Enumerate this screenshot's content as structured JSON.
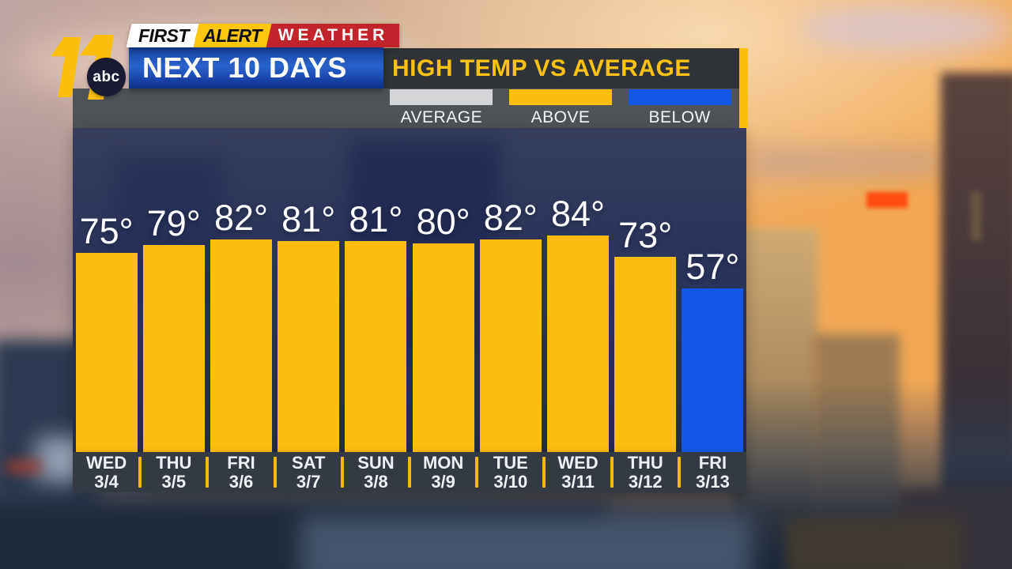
{
  "station": {
    "channel_number": "11",
    "network": "abc",
    "brand_first": "FIRST",
    "brand_alert": "ALERT",
    "brand_weather": "WEATHER"
  },
  "header": {
    "banner_title": "NEXT 10 DAYS",
    "chart_title": "HIGH TEMP VS AVERAGE"
  },
  "legend": {
    "items": [
      {
        "label": "AVERAGE",
        "color": "#d4d5d7"
      },
      {
        "label": "ABOVE",
        "color": "#fcbd10"
      },
      {
        "label": "BELOW",
        "color": "#1457e8"
      }
    ]
  },
  "chart_data": {
    "type": "bar",
    "title": "HIGH TEMP VS AVERAGE",
    "subtitle": "NEXT 10 DAYS",
    "unit": "°",
    "day_names": [
      "WED",
      "THU",
      "FRI",
      "SAT",
      "SUN",
      "MON",
      "TUE",
      "WED",
      "THU",
      "FRI"
    ],
    "dates": [
      "3/4",
      "3/5",
      "3/6",
      "3/7",
      "3/8",
      "3/9",
      "3/10",
      "3/11",
      "3/12",
      "3/13"
    ],
    "categories": [
      "WED 3/4",
      "THU 3/5",
      "FRI 3/6",
      "SAT 3/7",
      "SUN 3/8",
      "MON 3/9",
      "TUE 3/10",
      "WED 3/11",
      "THU 3/12",
      "FRI 3/13"
    ],
    "values": [
      75,
      79,
      82,
      81,
      81,
      80,
      82,
      84,
      73,
      57
    ],
    "status": [
      "above",
      "above",
      "above",
      "above",
      "above",
      "above",
      "above",
      "above",
      "above",
      "below"
    ],
    "colors": {
      "above": "#fcbd10",
      "below": "#1457e8",
      "average": "#d4d5d7"
    },
    "legend_entries": [
      "AVERAGE",
      "ABOVE",
      "BELOW"
    ],
    "legend_position": "top"
  }
}
